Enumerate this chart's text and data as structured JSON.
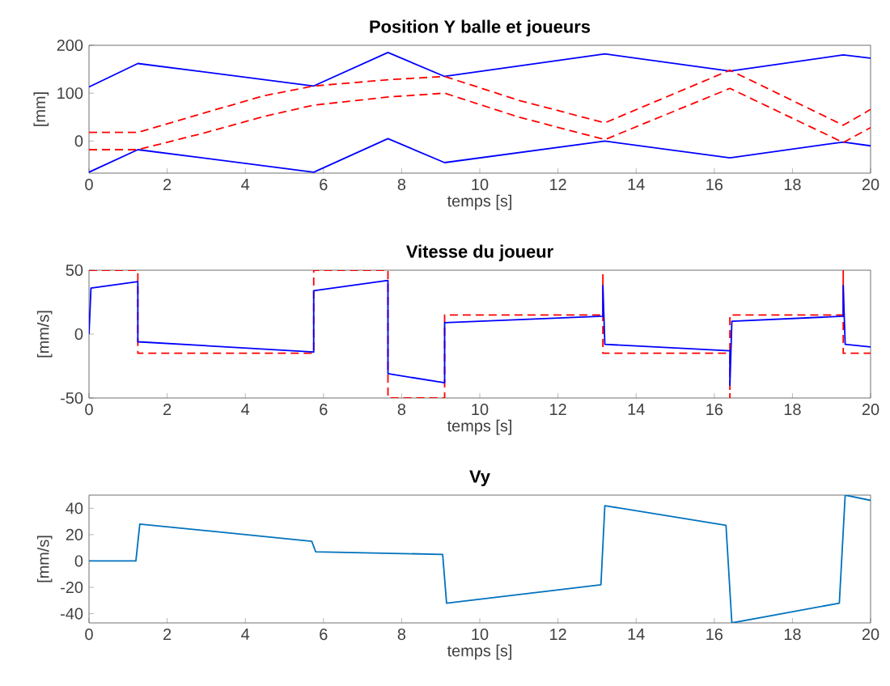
{
  "chart_data": [
    {
      "type": "line",
      "title": "Position Y balle et joueurs",
      "xlabel": "temps [s]",
      "ylabel": "[mm]",
      "xlim": [
        0,
        20
      ],
      "xticks": [
        0,
        2,
        4,
        6,
        8,
        10,
        12,
        14,
        16,
        18,
        20
      ],
      "ylim": [
        -67,
        200
      ],
      "yticks": [
        0,
        100,
        200
      ],
      "series": [
        {
          "color": "#0000ff",
          "line_style": "solid",
          "x": [
            0,
            1.25,
            5.75,
            7.65,
            9.1,
            13.2,
            16.4,
            19.3,
            20
          ],
          "values": [
            113,
            162,
            115,
            185,
            135,
            182,
            146,
            180,
            173
          ]
        },
        {
          "color": "#0000ff",
          "line_style": "solid",
          "x": [
            0,
            1.25,
            5.75,
            7.65,
            9.1,
            13.2,
            16.4,
            19.3,
            20
          ],
          "values": [
            -65,
            -18,
            -65,
            5,
            -45,
            0,
            -35,
            -2,
            -10
          ]
        },
        {
          "color": "#ff0000",
          "line_style": "dashed",
          "x": [
            0,
            1.25,
            3,
            4.5,
            5.75,
            7.65,
            9.1,
            11,
            13.2,
            16.4,
            19.3,
            20
          ],
          "values": [
            18,
            18,
            60,
            95,
            115,
            128,
            135,
            85,
            38,
            148,
            33,
            66
          ]
        },
        {
          "color": "#ff0000",
          "line_style": "dashed",
          "x": [
            0,
            1.25,
            3,
            4.5,
            5.75,
            7.65,
            9.1,
            11,
            13.2,
            16.4,
            19.3,
            20
          ],
          "values": [
            -18,
            -18,
            18,
            52,
            75,
            92,
            100,
            50,
            3,
            110,
            -3,
            28
          ]
        }
      ]
    },
    {
      "type": "line",
      "title": "Vitesse du joueur",
      "xlabel": "temps [s]",
      "ylabel": "[mm/s]",
      "xlim": [
        0,
        20
      ],
      "xticks": [
        0,
        2,
        4,
        6,
        8,
        10,
        12,
        14,
        16,
        18,
        20
      ],
      "ylim": [
        -50,
        50
      ],
      "yticks": [
        -50,
        0,
        50
      ],
      "series": [
        {
          "color": "#ff0000",
          "line_style": "dashed",
          "x": [
            0,
            1.25,
            1.25,
            5.75,
            5.75,
            7.65,
            7.65,
            9.1,
            9.1,
            13.15,
            13.15,
            13.15,
            16.4,
            16.4,
            16.4,
            19.3,
            19.3,
            19.3,
            20
          ],
          "values": [
            50,
            50,
            -15,
            -15,
            50,
            50,
            -50,
            -50,
            15,
            15,
            47,
            -15,
            -15,
            -50,
            15,
            15,
            50,
            -15,
            -15
          ]
        },
        {
          "color": "#0000ff",
          "line_style": "solid",
          "x": [
            0,
            0.05,
            1.25,
            1.25,
            5.75,
            5.75,
            7.65,
            7.65,
            9.1,
            9.1,
            13.15,
            13.15,
            13.2,
            16.4,
            16.4,
            16.45,
            19.3,
            19.3,
            19.35,
            20
          ],
          "values": [
            0,
            36,
            41,
            -6,
            -14,
            34,
            42,
            -31,
            -38,
            9,
            14,
            38,
            -8,
            -13,
            -40,
            10,
            14,
            38,
            -8,
            -10
          ]
        }
      ]
    },
    {
      "type": "line",
      "title": "Vy",
      "xlabel": "temps [s]",
      "ylabel": "[mm/s]",
      "xlim": [
        0,
        20
      ],
      "xticks": [
        0,
        2,
        4,
        6,
        8,
        10,
        12,
        14,
        16,
        18,
        20
      ],
      "ylim": [
        -47,
        50
      ],
      "yticks": [
        -40,
        -20,
        0,
        20,
        40
      ],
      "series": [
        {
          "color": "#0072bd",
          "line_style": "solid",
          "x": [
            0,
            1.2,
            1.3,
            5.7,
            5.8,
            9.05,
            9.15,
            13.1,
            13.2,
            16.3,
            16.45,
            19.2,
            19.35,
            20
          ],
          "values": [
            0,
            0,
            28,
            15,
            7,
            5,
            -32,
            -18,
            42,
            27,
            -47,
            -32,
            50,
            46
          ]
        }
      ]
    }
  ]
}
